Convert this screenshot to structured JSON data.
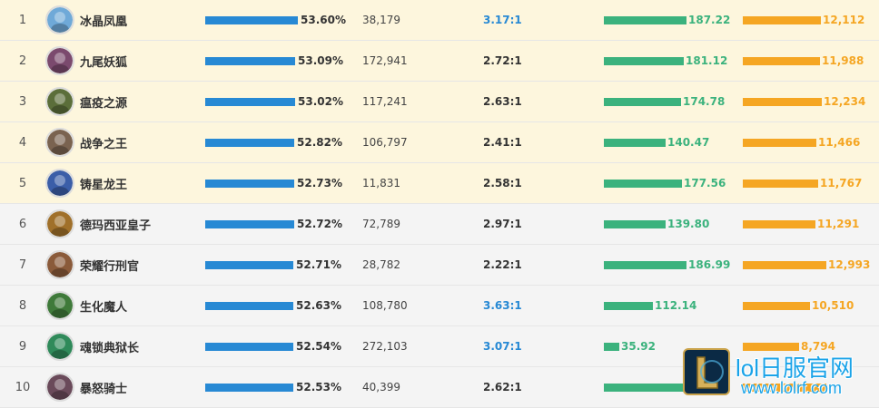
{
  "colors": {
    "winrate_bar": "#2789d4",
    "gold_bar": "#3bb27d",
    "damage_bar": "#f5a623",
    "top_row_bg": "#fdf6dd",
    "rest_row_bg": "#f4f4f4"
  },
  "rows": [
    {
      "rank": "1",
      "name": "冰晶凤凰",
      "winrate": "53.60%",
      "winrate_value": 53.6,
      "games": "38,179",
      "kda": "3.17:1",
      "kda_highlight": true,
      "gold": "187.22",
      "gold_value": 187.22,
      "damage": "12,112",
      "damage_value": 12112,
      "avatar": "champion-portrait-icon",
      "avatar_color": "#6fa9d8"
    },
    {
      "rank": "2",
      "name": "九尾妖狐",
      "winrate": "53.09%",
      "winrate_value": 53.09,
      "games": "172,941",
      "kda": "2.72:1",
      "kda_highlight": false,
      "gold": "181.12",
      "gold_value": 181.12,
      "damage": "11,988",
      "damage_value": 11988,
      "avatar": "champion-portrait-icon",
      "avatar_color": "#7b4a6e"
    },
    {
      "rank": "3",
      "name": "瘟疫之源",
      "winrate": "53.02%",
      "winrate_value": 53.02,
      "games": "117,241",
      "kda": "2.63:1",
      "kda_highlight": false,
      "gold": "174.78",
      "gold_value": 174.78,
      "damage": "12,234",
      "damage_value": 12234,
      "avatar": "champion-portrait-icon",
      "avatar_color": "#5b6e3a"
    },
    {
      "rank": "4",
      "name": "战争之王",
      "winrate": "52.82%",
      "winrate_value": 52.82,
      "games": "106,797",
      "kda": "2.41:1",
      "kda_highlight": false,
      "gold": "140.47",
      "gold_value": 140.47,
      "damage": "11,466",
      "damage_value": 11466,
      "avatar": "champion-portrait-icon",
      "avatar_color": "#7a6350"
    },
    {
      "rank": "5",
      "name": "铸星龙王",
      "winrate": "52.73%",
      "winrate_value": 52.73,
      "games": "11,831",
      "kda": "2.58:1",
      "kda_highlight": false,
      "gold": "177.56",
      "gold_value": 177.56,
      "damage": "11,767",
      "damage_value": 11767,
      "avatar": "champion-portrait-icon",
      "avatar_color": "#3b5ea8"
    },
    {
      "rank": "6",
      "name": "德玛西亚皇子",
      "winrate": "52.72%",
      "winrate_value": 52.72,
      "games": "72,789",
      "kda": "2.97:1",
      "kda_highlight": false,
      "gold": "139.80",
      "gold_value": 139.8,
      "damage": "11,291",
      "damage_value": 11291,
      "avatar": "champion-portrait-icon",
      "avatar_color": "#a0702a"
    },
    {
      "rank": "7",
      "name": "荣耀行刑官",
      "winrate": "52.71%",
      "winrate_value": 52.71,
      "games": "28,782",
      "kda": "2.22:1",
      "kda_highlight": false,
      "gold": "186.99",
      "gold_value": 186.99,
      "damage": "12,993",
      "damage_value": 12993,
      "avatar": "champion-portrait-icon",
      "avatar_color": "#8a5a3a"
    },
    {
      "rank": "8",
      "name": "生化魔人",
      "winrate": "52.63%",
      "winrate_value": 52.63,
      "games": "108,780",
      "kda": "3.63:1",
      "kda_highlight": true,
      "gold": "112.14",
      "gold_value": 112.14,
      "damage": "10,510",
      "damage_value": 10510,
      "avatar": "champion-portrait-icon",
      "avatar_color": "#3f7a3a"
    },
    {
      "rank": "9",
      "name": "魂锁典狱长",
      "winrate": "52.54%",
      "winrate_value": 52.54,
      "games": "272,103",
      "kda": "3.07:1",
      "kda_highlight": true,
      "gold": "35.92",
      "gold_value": 35.92,
      "damage": "8,794",
      "damage_value": 8794,
      "avatar": "champion-portrait-icon",
      "avatar_color": "#2f8a5a"
    },
    {
      "rank": "10",
      "name": "暴怒骑士",
      "winrate": "52.53%",
      "winrate_value": 52.53,
      "games": "40,399",
      "kda": "2.62:1",
      "kda_highlight": false,
      "gold": "",
      "gold_value": null,
      "damage": "",
      "damage_value": null,
      "avatar": "champion-portrait-icon",
      "avatar_color": "#6a4a5a"
    }
  ],
  "watermark": {
    "title": "lol日服官网",
    "url": "www.lolrf.com",
    "logo": "league-logo-icon"
  }
}
